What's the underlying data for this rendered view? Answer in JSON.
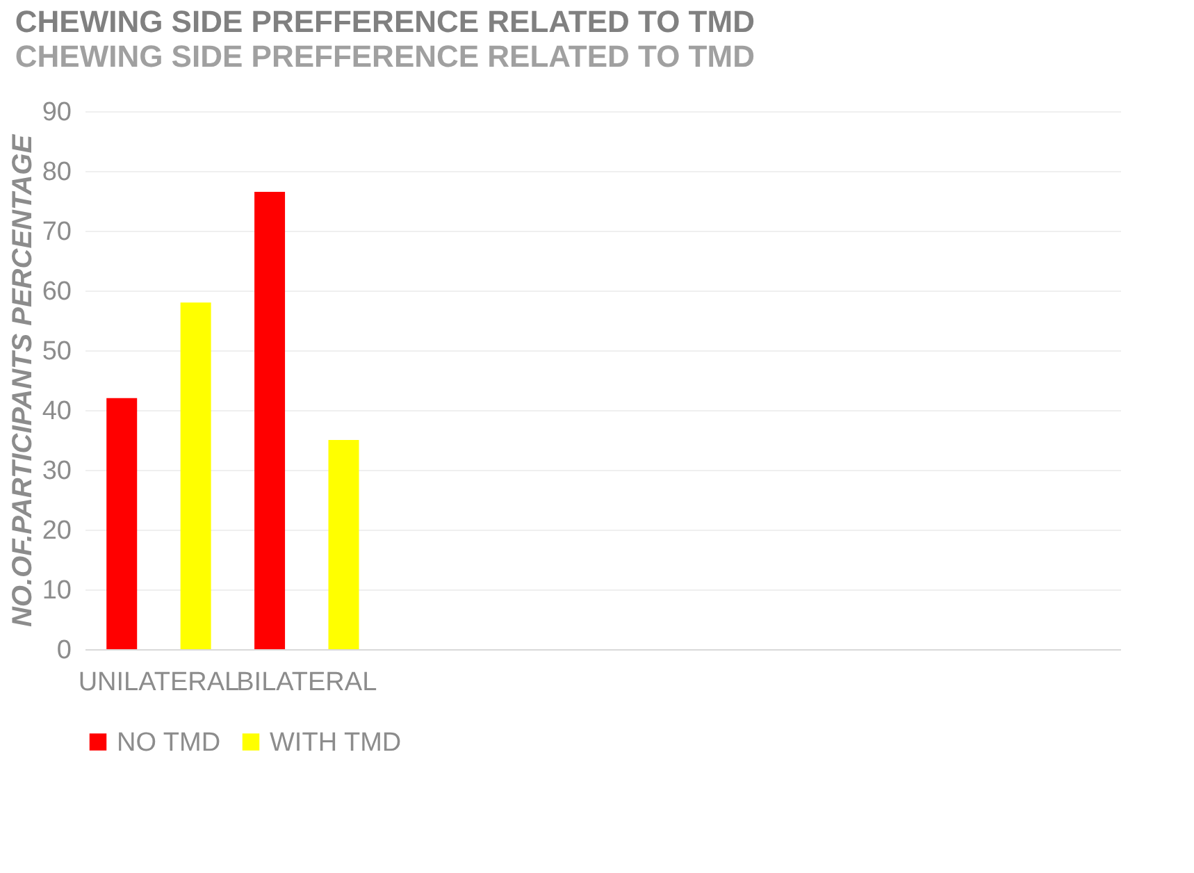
{
  "chart_data": {
    "type": "bar",
    "title": "CHEWING SIDE PREFFERENCE RELATED TO TMD",
    "subtitle": "CHEWING SIDE PREFFERENCE RELATED TO TMD",
    "ylabel": "NO.OF.PARTICIPANTS PERCENTAGE",
    "categories": [
      "UNILATERAL",
      "BILATERAL",
      null,
      null,
      null,
      null,
      null
    ],
    "series": [
      {
        "name": "NO TMD",
        "color": "#ff0000",
        "values": [
          42,
          76.5,
          null,
          null,
          null,
          null,
          null
        ]
      },
      {
        "name": "WITH TMD",
        "color": "#ffff00",
        "values": [
          58,
          35,
          null,
          null,
          null,
          null,
          null
        ]
      }
    ],
    "ylim": [
      0,
      90
    ],
    "yticks": [
      0,
      10,
      20,
      30,
      40,
      50,
      60,
      70,
      80,
      90
    ],
    "grid": "y",
    "legend": "bottom"
  }
}
